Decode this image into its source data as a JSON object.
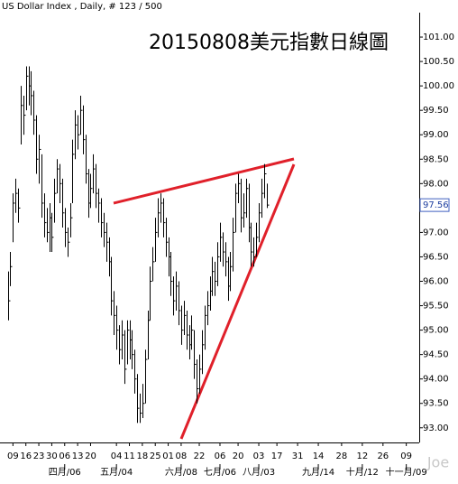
{
  "chart_data": {
    "type": "ohlc",
    "header": "US Dollar Index , Daily, # 123 / 500",
    "title": "20150808美元指數日線圖",
    "watermark": "Joe",
    "color": "#000000",
    "x": [
      0,
      1,
      2,
      3,
      4,
      5,
      6,
      7,
      8,
      9,
      10,
      11,
      12,
      13,
      14,
      15,
      16,
      17,
      18,
      19,
      20,
      21,
      22,
      23,
      24,
      25,
      26,
      27,
      28,
      29,
      30,
      31,
      32,
      33,
      34,
      35,
      36,
      37,
      38,
      39,
      40,
      41,
      42,
      43,
      44,
      45,
      46,
      47,
      48,
      49,
      50,
      51,
      52,
      53,
      54,
      55,
      56,
      57,
      58,
      59,
      60,
      61,
      62,
      63,
      64,
      65,
      66,
      67,
      68,
      69,
      70,
      71,
      72,
      73,
      74,
      75,
      76,
      77,
      78,
      79,
      80,
      81,
      82,
      83,
      84,
      85,
      86,
      87,
      88,
      89,
      90,
      91,
      92,
      93,
      94,
      95,
      96,
      97,
      98,
      99,
      100
    ],
    "high": [
      96.2,
      96.6,
      97.8,
      98.1,
      97.9,
      100.0,
      99.8,
      100.4,
      100.4,
      100.3,
      99.9,
      99.4,
      99.0,
      98.6,
      97.8,
      97.5,
      97.6,
      97.4,
      98.1,
      98.5,
      98.4,
      98.1,
      97.5,
      97.1,
      97.6,
      98.9,
      99.5,
      99.4,
      99.8,
      99.6,
      99.0,
      98.3,
      98.2,
      98.6,
      98.4,
      97.9,
      97.7,
      97.4,
      97.2,
      96.9,
      96.5,
      95.8,
      95.5,
      95.1,
      95.2,
      95.0,
      95.2,
      95.2,
      95.0,
      94.6,
      94.1,
      93.7,
      93.9,
      94.6,
      95.4,
      96.3,
      96.7,
      97.3,
      97.7,
      97.8,
      97.7,
      97.3,
      96.9,
      96.6,
      96.1,
      96.2,
      96.0,
      95.5,
      95.6,
      95.4,
      95.1,
      95.3,
      95.0,
      94.4,
      94.5,
      95.0,
      95.5,
      95.8,
      96.1,
      96.5,
      96.4,
      96.8,
      97.2,
      97.0,
      96.8,
      96.5,
      96.6,
      97.3,
      98.0,
      98.2,
      98.1,
      97.8,
      98.1,
      98.0,
      97.2,
      96.9,
      97.2,
      97.6,
      98.1,
      98.4,
      98.0
    ],
    "low": [
      95.2,
      95.9,
      96.8,
      97.4,
      97.2,
      98.8,
      99.0,
      99.5,
      99.6,
      99.4,
      99.0,
      98.2,
      98.0,
      97.3,
      96.9,
      96.8,
      96.6,
      96.6,
      97.2,
      97.8,
      97.6,
      97.1,
      96.7,
      96.5,
      96.9,
      97.6,
      98.5,
      98.7,
      99.0,
      98.6,
      98.0,
      97.3,
      97.5,
      97.8,
      97.5,
      97.2,
      96.9,
      96.7,
      96.4,
      96.1,
      95.3,
      94.9,
      94.6,
      94.3,
      94.4,
      93.9,
      94.3,
      94.4,
      94.2,
      93.7,
      93.1,
      93.1,
      93.2,
      93.5,
      94.4,
      95.2,
      96.0,
      96.4,
      96.9,
      97.2,
      96.9,
      96.5,
      96.1,
      95.7,
      95.3,
      95.4,
      95.1,
      94.7,
      94.9,
      94.6,
      94.4,
      94.6,
      94.0,
      93.5,
      93.7,
      94.1,
      94.6,
      95.1,
      95.4,
      95.7,
      95.7,
      95.9,
      96.4,
      96.3,
      96.1,
      95.6,
      95.8,
      96.2,
      97.0,
      97.6,
      97.0,
      97.1,
      97.3,
      96.8,
      96.3,
      96.3,
      96.5,
      96.8,
      97.3,
      97.7,
      97.5
    ],
    "close": [
      95.6,
      96.3,
      97.6,
      97.8,
      97.5,
      99.6,
      99.4,
      100.2,
      100.0,
      99.8,
      99.3,
      98.5,
      98.7,
      97.6,
      97.2,
      97.0,
      97.3,
      96.9,
      97.8,
      98.3,
      98.0,
      97.4,
      97.0,
      96.8,
      97.3,
      98.6,
      99.2,
      99.0,
      99.5,
      98.9,
      98.2,
      97.6,
      97.9,
      98.3,
      97.8,
      97.6,
      97.2,
      97.0,
      96.8,
      96.4,
      95.6,
      95.3,
      95.0,
      94.6,
      94.9,
      94.2,
      95.0,
      94.8,
      94.5,
      94.0,
      93.4,
      93.3,
      93.5,
      94.4,
      95.2,
      96.0,
      96.4,
      97.0,
      97.4,
      97.6,
      97.2,
      96.8,
      96.5,
      96.0,
      95.6,
      95.9,
      95.4,
      95.0,
      95.3,
      94.9,
      94.7,
      95.0,
      94.3,
      93.8,
      94.2,
      94.7,
      95.3,
      95.5,
      95.8,
      96.2,
      96.0,
      96.5,
      96.9,
      96.6,
      96.4,
      95.9,
      96.3,
      97.0,
      97.8,
      98.0,
      97.3,
      97.4,
      97.9,
      97.1,
      96.6,
      96.5,
      96.9,
      97.4,
      97.8,
      98.2,
      97.56
    ],
    "xlim": [
      -3,
      159
    ],
    "xticks": [
      {
        "value": 2,
        "label": "09"
      },
      {
        "value": 7,
        "label": "16"
      },
      {
        "value": 12,
        "label": "23"
      },
      {
        "value": 17,
        "label": "30"
      },
      {
        "value": 22,
        "label": "06"
      },
      {
        "value": 27,
        "label": "13"
      },
      {
        "value": 32,
        "label": "20"
      },
      {
        "value": 42,
        "label": "04"
      },
      {
        "value": 47,
        "label": "11"
      },
      {
        "value": 52,
        "label": "18"
      },
      {
        "value": 57,
        "label": "25"
      },
      {
        "value": 62,
        "label": "01"
      },
      {
        "value": 67,
        "label": "08"
      },
      {
        "value": 74,
        "label": "22"
      },
      {
        "value": 82,
        "label": "06"
      },
      {
        "value": 89,
        "label": "20"
      },
      {
        "value": 97,
        "label": "03"
      },
      {
        "value": 104,
        "label": "17"
      },
      {
        "value": 112,
        "label": "31"
      },
      {
        "value": 120,
        "label": "14"
      },
      {
        "value": 129,
        "label": "28"
      },
      {
        "value": 137,
        "label": "12"
      },
      {
        "value": 145,
        "label": "26"
      },
      {
        "value": 154,
        "label": "09"
      }
    ],
    "month_labels": [
      {
        "value": 22,
        "label": "四月/06"
      },
      {
        "value": 42,
        "label": "五月/04"
      },
      {
        "value": 67,
        "label": "六月/08"
      },
      {
        "value": 82,
        "label": "七月/06"
      },
      {
        "value": 97,
        "label": "八月/03"
      },
      {
        "value": 120,
        "label": "九月/14"
      },
      {
        "value": 137,
        "label": "十月/12"
      },
      {
        "value": 154,
        "label": "十一月/09"
      }
    ],
    "ylim": [
      92.7,
      101.5
    ],
    "yticks": [
      {
        "value": 93,
        "label": "93.00"
      },
      {
        "value": 93.5,
        "label": "93.50"
      },
      {
        "value": 94,
        "label": "94.00"
      },
      {
        "value": 94.5,
        "label": "94.50"
      },
      {
        "value": 95,
        "label": "95.00"
      },
      {
        "value": 95.5,
        "label": "95.50"
      },
      {
        "value": 96,
        "label": "96.00"
      },
      {
        "value": 96.5,
        "label": "96.50"
      },
      {
        "value": 97,
        "label": "97.00"
      },
      {
        "value": 97.5,
        "label": "97.50"
      },
      {
        "value": 98,
        "label": "98.00"
      },
      {
        "value": 98.5,
        "label": "98.50"
      },
      {
        "value": 99,
        "label": "99.00"
      },
      {
        "value": 99.5,
        "label": "99.50"
      },
      {
        "value": 100,
        "label": "100.00"
      },
      {
        "value": 100.5,
        "label": "100.50"
      },
      {
        "value": 101,
        "label": "101.00"
      }
    ]
  }
}
